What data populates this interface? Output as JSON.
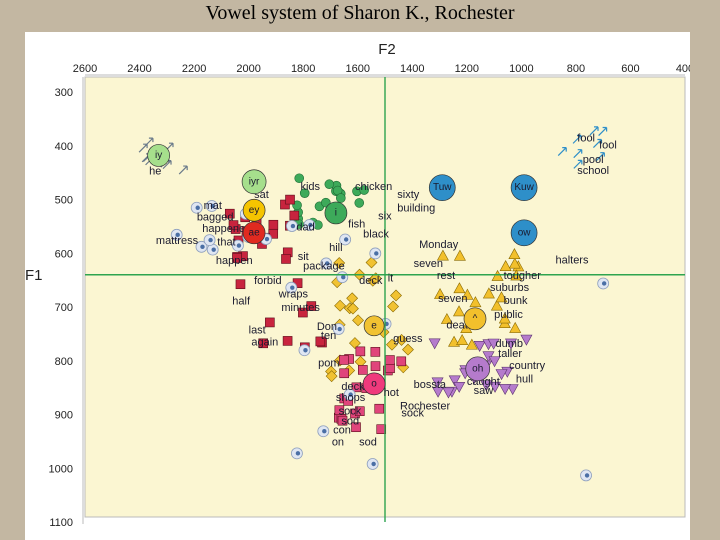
{
  "title": "Vowel system of Sharon K., Rochester",
  "colors": {
    "plot_bg": "#fbf6d2",
    "crosshair": "#2ea44f",
    "iy": "#a6df8c",
    "i": "#3daa5a",
    "ey": "#f5c400",
    "ae": "#e02a20",
    "ae_token": "#c8243e",
    "e": "#f1c232",
    "o": "#ef3a7c",
    "o_token": "#e0457b",
    "oh": "#b57bcc",
    "caret": "#f2c02c",
    "back": "#2e8fc9",
    "vowel_label": "#1a1a2e"
  },
  "chart_data": {
    "type": "scatter",
    "title": "Vowel system of Sharon K., Rochester",
    "xlabel": "F2",
    "ylabel": "F1",
    "xlim": [
      2600,
      400
    ],
    "ylim": [
      300,
      1100
    ],
    "x_ticks": [
      2600,
      2400,
      2200,
      2000,
      1800,
      1600,
      1400,
      1200,
      1000,
      800,
      600,
      400
    ],
    "y_ticks": [
      300,
      400,
      500,
      600,
      700,
      800,
      900,
      1000,
      1100
    ],
    "crosshair": {
      "f2": 1500,
      "f1": 640
    },
    "grid": false,
    "means": [
      {
        "label": "iy",
        "f2": 2330,
        "f1": 418,
        "r": 11,
        "color": "#a6df8c"
      },
      {
        "label": "iyr",
        "f2": 1980,
        "f1": 467,
        "r": 12,
        "color": "#a6df8c"
      },
      {
        "label": "i",
        "f2": 1680,
        "f1": 525,
        "r": 11,
        "color": "#3daa5a"
      },
      {
        "label": "ey",
        "f2": 1980,
        "f1": 520,
        "r": 11,
        "color": "#f5c400"
      },
      {
        "label": "ae",
        "f2": 1980,
        "f1": 562,
        "r": 11,
        "color": "#e02a20"
      },
      {
        "label": "e",
        "f2": 1540,
        "f1": 735,
        "r": 10,
        "color": "#f1c232"
      },
      {
        "label": "^",
        "f2": 1170,
        "f1": 722,
        "r": 11,
        "color": "#f2c02c"
      },
      {
        "label": "o",
        "f2": 1540,
        "f1": 843,
        "r": 11,
        "color": "#ef3a7c"
      },
      {
        "label": "oh",
        "f2": 1160,
        "f1": 815,
        "r": 12,
        "color": "#b57bcc"
      },
      {
        "label": "Tuw",
        "f2": 1290,
        "f1": 478,
        "r": 13,
        "color": "#2e8fc9"
      },
      {
        "label": "Kuw",
        "f2": 990,
        "f1": 478,
        "r": 13,
        "color": "#2e8fc9"
      },
      {
        "label": "ow",
        "f2": 990,
        "f1": 562,
        "r": 13,
        "color": "#2e8fc9"
      }
    ],
    "word_labels": [
      {
        "text": "he",
        "f2": 2365,
        "f1": 446
      },
      {
        "text": "sat",
        "f2": 1980,
        "f1": 490
      },
      {
        "text": "mat",
        "f2": 2165,
        "f1": 510
      },
      {
        "text": "bagged",
        "f2": 2190,
        "f1": 532
      },
      {
        "text": "happened",
        "f2": 2170,
        "f1": 553
      },
      {
        "text": "mattress",
        "f2": 2340,
        "f1": 575
      },
      {
        "text": "that",
        "f2": 2115,
        "f1": 578
      },
      {
        "text": "happen",
        "f2": 2120,
        "f1": 613
      },
      {
        "text": "kids",
        "f2": 1810,
        "f1": 475
      },
      {
        "text": "dad",
        "f2": 1825,
        "f1": 550
      },
      {
        "text": "hill",
        "f2": 1705,
        "f1": 588
      },
      {
        "text": "sit",
        "f2": 1820,
        "f1": 605
      },
      {
        "text": "package",
        "f2": 1800,
        "f1": 623
      },
      {
        "text": "forbid",
        "f2": 1980,
        "f1": 650
      },
      {
        "text": "wraps",
        "f2": 1890,
        "f1": 675
      },
      {
        "text": "half",
        "f2": 2060,
        "f1": 688
      },
      {
        "text": "minutes",
        "f2": 1880,
        "f1": 700
      },
      {
        "text": "last",
        "f2": 2000,
        "f1": 742
      },
      {
        "text": "again",
        "f2": 1990,
        "f1": 764
      },
      {
        "text": "Don",
        "f2": 1750,
        "f1": 735
      },
      {
        "text": "ten",
        "f2": 1735,
        "f1": 752
      },
      {
        "text": "pom",
        "f2": 1745,
        "f1": 803
      },
      {
        "text": "chicken",
        "f2": 1610,
        "f1": 475
      },
      {
        "text": "sixty",
        "f2": 1455,
        "f1": 490
      },
      {
        "text": "building",
        "f2": 1455,
        "f1": 515
      },
      {
        "text": "fish",
        "f2": 1635,
        "f1": 545
      },
      {
        "text": "six",
        "f2": 1525,
        "f1": 530
      },
      {
        "text": "black",
        "f2": 1580,
        "f1": 563
      },
      {
        "text": "Monday",
        "f2": 1375,
        "f1": 583
      },
      {
        "text": "seven",
        "f2": 1395,
        "f1": 618
      },
      {
        "text": "rest",
        "f2": 1310,
        "f1": 640
      },
      {
        "text": "deck",
        "f2": 1595,
        "f1": 650
      },
      {
        "text": "it",
        "f2": 1490,
        "f1": 645
      },
      {
        "text": "seven",
        "f2": 1305,
        "f1": 683
      },
      {
        "text": "death",
        "f2": 1275,
        "f1": 733
      },
      {
        "text": "guess",
        "f2": 1470,
        "f1": 758
      },
      {
        "text": "tougher",
        "f2": 1065,
        "f1": 640
      },
      {
        "text": "suburbs",
        "f2": 1115,
        "f1": 663
      },
      {
        "text": "bunk",
        "f2": 1065,
        "f1": 687
      },
      {
        "text": "public",
        "f2": 1100,
        "f1": 713
      },
      {
        "text": "dumb",
        "f2": 1095,
        "f1": 767
      },
      {
        "text": "taller",
        "f2": 1085,
        "f1": 786
      },
      {
        "text": "country",
        "f2": 1045,
        "f1": 808
      },
      {
        "text": "hull",
        "f2": 1020,
        "f1": 833
      },
      {
        "text": "halters",
        "f2": 875,
        "f1": 612
      },
      {
        "text": "caught",
        "f2": 1200,
        "f1": 838
      },
      {
        "text": "saw",
        "f2": 1175,
        "f1": 854
      },
      {
        "text": "bossta",
        "f2": 1395,
        "f1": 843
      },
      {
        "text": "deck",
        "f2": 1660,
        "f1": 847
      },
      {
        "text": "shops",
        "f2": 1680,
        "f1": 867
      },
      {
        "text": "hot",
        "f2": 1505,
        "f1": 858
      },
      {
        "text": "Rochester",
        "f2": 1445,
        "f1": 883
      },
      {
        "text": "sock",
        "f2": 1440,
        "f1": 896
      },
      {
        "text": "sock",
        "f2": 1670,
        "f1": 893
      },
      {
        "text": "sod",
        "f2": 1660,
        "f1": 911
      },
      {
        "text": "con",
        "f2": 1690,
        "f1": 928
      },
      {
        "text": "on",
        "f2": 1695,
        "f1": 950
      },
      {
        "text": "sod",
        "f2": 1595,
        "f1": 950
      },
      {
        "text": "fool",
        "f2": 795,
        "f1": 385
      },
      {
        "text": "fool",
        "f2": 715,
        "f1": 398
      },
      {
        "text": "pool",
        "f2": 775,
        "f1": 425
      },
      {
        "text": "school",
        "f2": 795,
        "f1": 445
      }
    ]
  }
}
